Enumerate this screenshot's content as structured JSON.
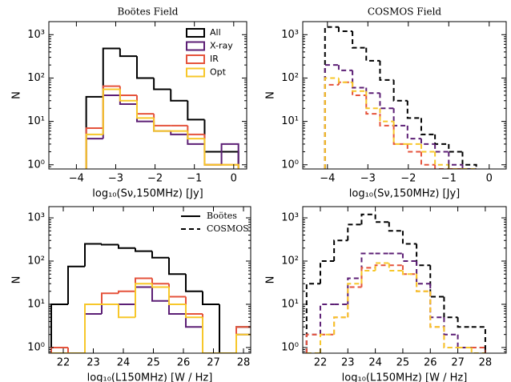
{
  "chart_data": [
    {
      "type": "histogram",
      "title": "Boötes Field",
      "xlabel": "log₁₀(Sν,150MHz) [Jy]",
      "ylabel": "N",
      "log_y": true,
      "linestyle": "solid",
      "legend": "upper right",
      "bins": [
        -3.75,
        -3.32,
        -2.89,
        -2.46,
        -2.03,
        -1.6,
        -1.17,
        -0.74,
        -0.31,
        0.12
      ],
      "series": [
        {
          "name": "All",
          "color": "#000000",
          "values": [
            37,
            480,
            320,
            100,
            55,
            30,
            11,
            2,
            2
          ]
        },
        {
          "name": "X-ray",
          "color": "#5c1f75",
          "values": [
            4,
            40,
            25,
            10,
            6,
            5,
            3,
            1,
            3
          ]
        },
        {
          "name": "IR",
          "color": "#e5533c",
          "values": [
            7,
            65,
            40,
            15,
            8,
            8,
            5,
            1,
            1
          ]
        },
        {
          "name": "Opt",
          "color": "#f7c72a",
          "values": [
            5,
            55,
            30,
            12,
            6,
            6,
            4,
            1,
            1
          ]
        }
      ],
      "xlim": [
        -4.7,
        0.33
      ],
      "ylim": [
        0.8,
        2000
      ],
      "xticks": [
        {
          "value": -4,
          "label": "−4"
        },
        {
          "value": -3,
          "label": "−3"
        },
        {
          "value": -2,
          "label": "−2"
        },
        {
          "value": -1,
          "label": "−1"
        },
        0
      ],
      "yticks": [
        {
          "value": 1,
          "label": "10⁰"
        },
        {
          "value": 10,
          "label": "10¹"
        },
        {
          "value": 100,
          "label": "10²"
        },
        {
          "value": 1000,
          "label": "10³"
        }
      ]
    },
    {
      "type": "histogram",
      "title": "COSMOS Field",
      "xlabel": "log₁₀(Sν,150MHz) [Jy]",
      "ylabel": "N",
      "log_y": true,
      "linestyle": "dashed",
      "bins": [
        -4.06,
        -3.72,
        -3.38,
        -3.04,
        -2.7,
        -2.36,
        -2.02,
        -1.68,
        -1.34,
        -1,
        -0.66,
        -0.32
      ],
      "series": [
        {
          "color": "#000000",
          "values": [
            1500,
            1200,
            500,
            250,
            90,
            30,
            12,
            5,
            3,
            2,
            1
          ]
        },
        {
          "color": "#5c1f75",
          "values": [
            200,
            150,
            60,
            45,
            20,
            8,
            4,
            3,
            2,
            1,
            0
          ]
        },
        {
          "color": "#e5533c",
          "values": [
            70,
            80,
            40,
            15,
            8,
            3,
            2,
            1,
            0,
            0,
            0
          ]
        },
        {
          "color": "#f7c72a",
          "values": [
            100,
            80,
            50,
            20,
            10,
            3,
            3,
            2,
            1,
            0,
            0
          ]
        }
      ],
      "xlim": [
        -4.61,
        0.42
      ],
      "ylim": [
        0.8,
        2000
      ],
      "xticks": [
        {
          "value": -4,
          "label": "−4"
        },
        {
          "value": -3,
          "label": "−3"
        },
        {
          "value": -2,
          "label": "−2"
        },
        {
          "value": -1,
          "label": "−1"
        },
        0
      ],
      "yticks": [
        {
          "value": 1,
          "label": "10⁰"
        },
        {
          "value": 10,
          "label": "10¹"
        },
        {
          "value": 100,
          "label": "10²"
        },
        {
          "value": 1000,
          "label": "10³"
        }
      ]
    },
    {
      "type": "histogram",
      "xlabel": "log₁₀(L150MHz) [W / Hz]",
      "ylabel": "N",
      "log_y": true,
      "linestyle": "solid",
      "legend_entries": [
        {
          "label": "Boötes",
          "style": "solid"
        },
        {
          "label": "COSMOS",
          "style": "dashed"
        }
      ],
      "bins": [
        21.6,
        22.16,
        22.72,
        23.28,
        23.84,
        24.4,
        24.96,
        25.52,
        26.08,
        26.64,
        27.2,
        27.76,
        28.32
      ],
      "series": [
        {
          "color": "#000000",
          "values": [
            10,
            75,
            250,
            240,
            200,
            170,
            120,
            50,
            20,
            10,
            0,
            3
          ]
        },
        {
          "color": "#5c1f75",
          "values": [
            0,
            0,
            6,
            10,
            10,
            25,
            12,
            6,
            3,
            0,
            0,
            2
          ]
        },
        {
          "color": "#e5533c",
          "values": [
            1,
            0,
            10,
            18,
            20,
            40,
            30,
            15,
            6,
            0,
            0,
            3
          ]
        },
        {
          "color": "#f7c72a",
          "values": [
            0,
            0,
            10,
            10,
            5,
            30,
            25,
            10,
            5,
            0,
            0,
            2
          ]
        }
      ],
      "xlim": [
        21.52,
        28.24
      ],
      "ylim": [
        0.74,
        1820
      ],
      "xticks": [
        22,
        23,
        24,
        25,
        26,
        27,
        28
      ],
      "yticks": [
        {
          "value": 1,
          "label": "10⁰"
        },
        {
          "value": 10,
          "label": "10¹"
        },
        {
          "value": 100,
          "label": "10²"
        },
        {
          "value": 1000,
          "label": "10³"
        }
      ]
    },
    {
      "type": "histogram",
      "xlabel": "log₁₀(L150MHz) [W / Hz]",
      "ylabel": "N",
      "log_y": true,
      "linestyle": "dashed",
      "bins": [
        21.5,
        22,
        22.5,
        23,
        23.5,
        24,
        24.5,
        25,
        25.5,
        26,
        26.5,
        27,
        27.5,
        28
      ],
      "series": [
        {
          "color": "#000000",
          "values": [
            30,
            100,
            300,
            700,
            1200,
            800,
            500,
            250,
            80,
            15,
            5,
            3,
            3
          ]
        },
        {
          "color": "#5c1f75",
          "values": [
            2,
            10,
            10,
            40,
            150,
            150,
            150,
            100,
            30,
            5,
            2,
            1,
            1
          ]
        },
        {
          "color": "#e5533c",
          "values": [
            2,
            2,
            5,
            25,
            70,
            80,
            80,
            50,
            20,
            3,
            1,
            1,
            1
          ]
        },
        {
          "color": "#f7c72a",
          "values": [
            0,
            2,
            5,
            30,
            60,
            90,
            60,
            50,
            20,
            3,
            1,
            1,
            0
          ]
        }
      ],
      "xlim": [
        21.36,
        28.76
      ],
      "ylim": [
        0.74,
        1820
      ],
      "xticks": [
        22,
        23,
        24,
        25,
        26,
        27,
        28
      ],
      "yticks": [
        {
          "value": 1,
          "label": "10⁰"
        },
        {
          "value": 10,
          "label": "10¹"
        },
        {
          "value": 100,
          "label": "10²"
        },
        {
          "value": 1000,
          "label": "10³"
        }
      ]
    }
  ]
}
